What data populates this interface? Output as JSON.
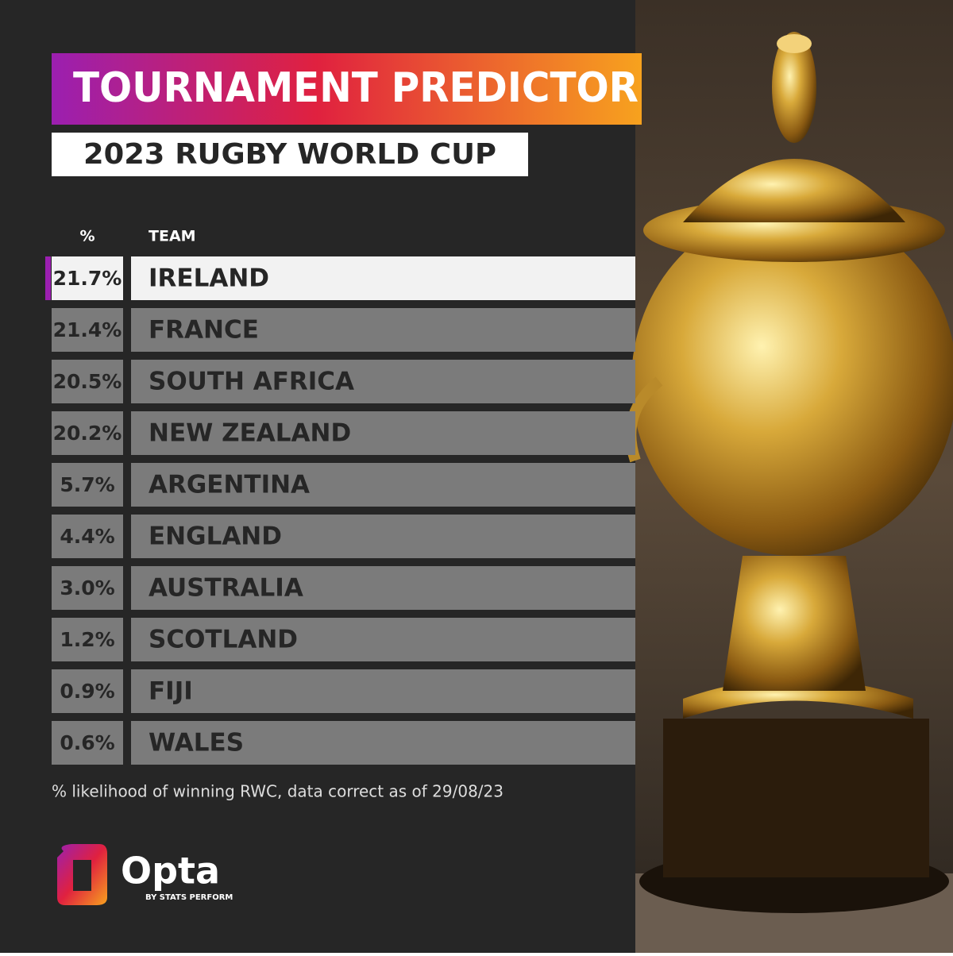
{
  "header": {
    "title": "TOURNAMENT PREDICTOR",
    "subtitle": "2023 RUGBY WORLD CUP"
  },
  "table": {
    "columns": [
      "%",
      "TEAM"
    ],
    "rows": [
      [
        "21.7%",
        "IRELAND"
      ],
      [
        "21.4%",
        "FRANCE"
      ],
      [
        "20.5%",
        "SOUTH AFRICA"
      ],
      [
        "20.2%",
        "NEW ZEALAND"
      ],
      [
        "5.7%",
        "ARGENTINA"
      ],
      [
        "4.4%",
        "ENGLAND"
      ],
      [
        "3.0%",
        "AUSTRALIA"
      ],
      [
        "1.2%",
        "SCOTLAND"
      ],
      [
        "0.9%",
        "FIJI"
      ],
      [
        "0.6%",
        "WALES"
      ]
    ]
  },
  "footnote": "% likelihood of winning RWC, data correct as of 29/08/23",
  "logo": {
    "name": "Opta",
    "tagline": "BY STATS PERFORM"
  }
}
